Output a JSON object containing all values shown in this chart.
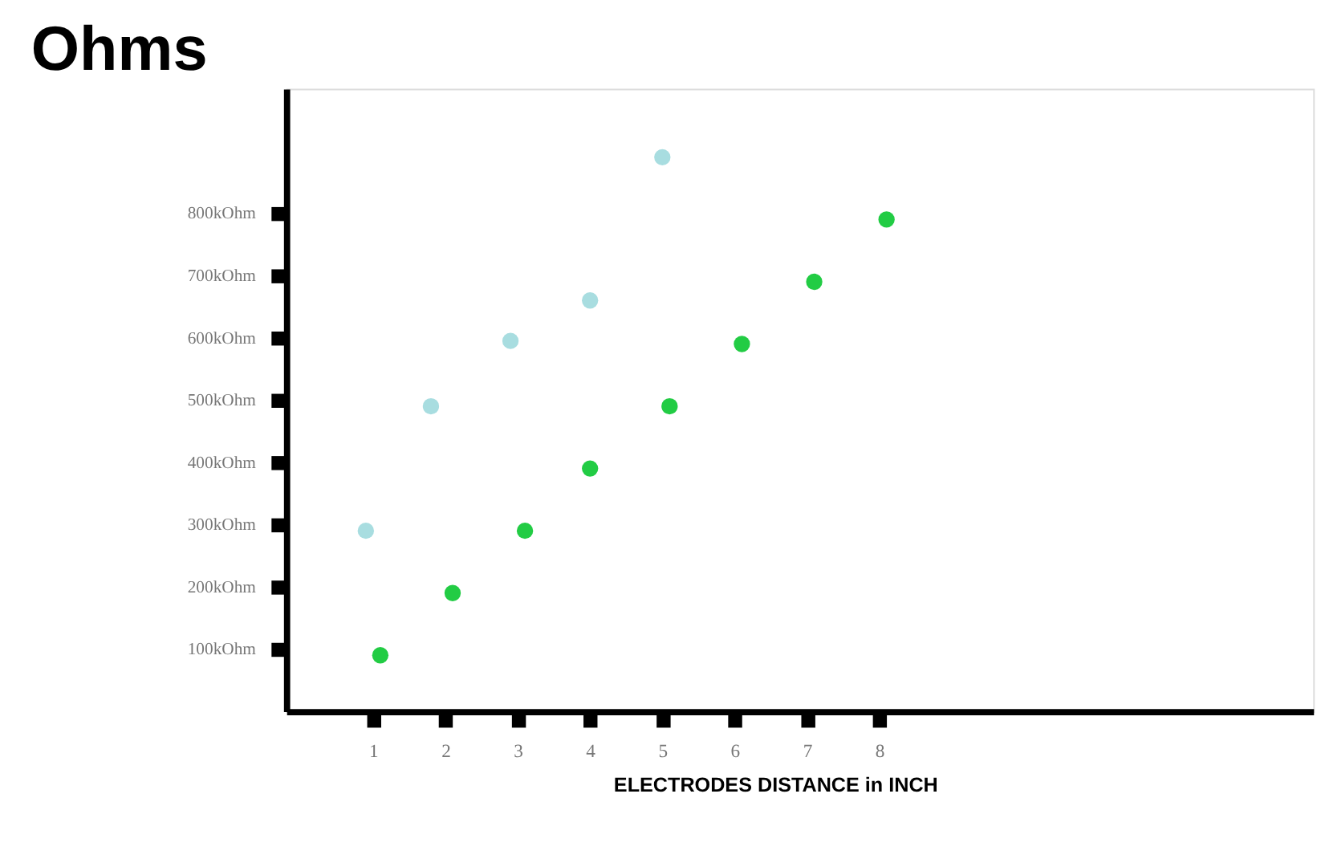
{
  "chart_data": {
    "type": "scatter",
    "title": "Ohms",
    "xlabel": "ELECTRODES DISTANCE in INCH",
    "series": [
      {
        "color": "#a8dde0",
        "x": [
          0.9,
          1.8,
          2.9,
          4.0,
          5.0
        ],
        "values": [
          290,
          490,
          595,
          660,
          890
        ]
      },
      {
        "color": "#22cc44",
        "x": [
          1.1,
          2.1,
          3.1,
          4.0,
          5.1,
          6.1,
          7.1,
          8.1
        ],
        "values": [
          90,
          190,
          290,
          390,
          490,
          590,
          690,
          790
        ]
      }
    ],
    "xlim": [
      -0.2,
      14
    ],
    "ylim": [
      0,
      1000
    ],
    "xticks": [
      1,
      2,
      3,
      4,
      5,
      6,
      7,
      8
    ],
    "yticks": [
      {
        "value": 100,
        "label": "100kOhm"
      },
      {
        "value": 200,
        "label": "200kOhm"
      },
      {
        "value": 300,
        "label": "300kOhm"
      },
      {
        "value": 400,
        "label": "400kOhm"
      },
      {
        "value": 500,
        "label": "500kOhm"
      },
      {
        "value": 600,
        "label": "600kOhm"
      },
      {
        "value": 700,
        "label": "700kOhm"
      },
      {
        "value": 800,
        "label": "800kOhm"
      }
    ],
    "grid": false,
    "marker": "circle",
    "legend": false
  }
}
